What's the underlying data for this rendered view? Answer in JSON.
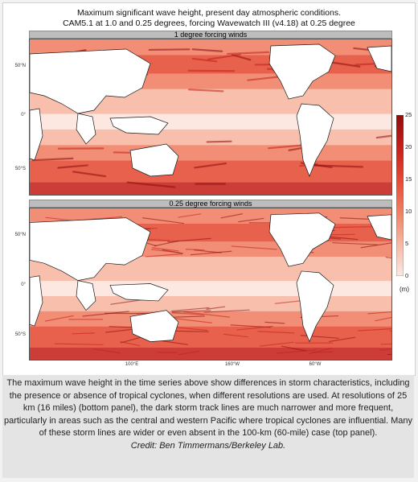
{
  "figure": {
    "title_line1": "Maximum significant wave height, present day atmospheric conditions.",
    "title_line2": "CAM5.1 at 1.0 and 0.25 degrees, forcing Wavewatch III (v4.18) at 0.25 degree",
    "panels": [
      {
        "label": "1 degree forcing winds",
        "resolution_km": 100
      },
      {
        "label": "0.25 degree forcing winds",
        "resolution_km": 25
      }
    ],
    "lat_labels": [
      "50°N",
      "0°",
      "50°S"
    ],
    "lon_labels": [
      "100°E",
      "160°W",
      "60°W"
    ],
    "colorbar": {
      "ticks": [
        "25",
        "20",
        "15",
        "10",
        "5",
        "0"
      ],
      "unit": "(m)",
      "range": [
        0,
        25
      ],
      "colors": [
        "#fbe9e2",
        "#f6b8a3",
        "#ef7f63",
        "#e34a33",
        "#c4201a",
        "#8e0d0d"
      ]
    },
    "land_color": "#ffffff",
    "coast_color": "#1a1a1a"
  },
  "caption": {
    "text": "The maximum wave height in the time series above show differences in storm characteristics, including the presence or absence of tropical cyclones, when different resolutions are used. At resolutions of 25 km (16 miles) (bottom panel), the dark storm track lines are much narrower and more frequent, particularly in areas such as the central and western Pacific where tropical cyclones are influential. Many of these storm lines are wider or even absent in the 100-km (60-mile) case (top panel).",
    "credit": "Credit: Ben Timmermans/Berkeley Lab."
  }
}
